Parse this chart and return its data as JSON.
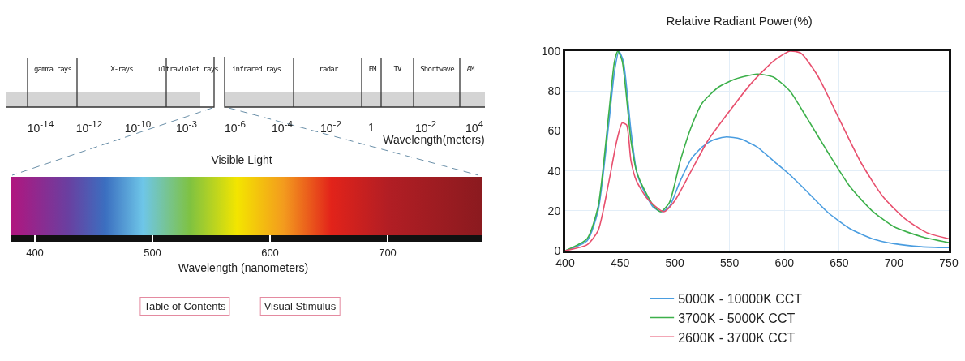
{
  "chart_data": [
    {
      "type": "other",
      "title": "Visible Light",
      "xlabel": "Wavelength (nanometers)",
      "annotations": [
        "gamma rays",
        "X-rays",
        "ultraviolet rays",
        "infrared rays",
        "radar",
        "FM",
        "TV",
        "Shortwave",
        "AM",
        "10$^{-14}$",
        "10$^{-12}$",
        "10$^{-10}$",
        "10$^{-3}$",
        "10$^{-6}$",
        "10$^{-4}$",
        "10$^{-2}$",
        "1",
        "10$^{-2}$",
        "10$^{4}$",
        "Wavelength(meters)",
        "Table of Contents",
        "Visual Stimulus",
        "400",
        "500",
        "600",
        "700"
      ]
    },
    {
      "type": "line",
      "title": "Relative Radiant Power(%)",
      "xlim": [
        400,
        750
      ],
      "xticks": [
        400,
        450,
        500,
        550,
        600,
        650,
        700,
        750
      ],
      "ylim": [
        0,
        100
      ],
      "yticks": [
        0,
        20,
        40,
        60,
        80,
        100
      ],
      "grid": true,
      "legend": "bottom",
      "series": [
        {
          "name": "5000K - 10000K CCT",
          "color": "#4a9de0",
          "x": [
            400,
            420,
            430,
            440,
            445,
            449,
            453,
            460,
            465,
            470,
            480,
            488,
            495,
            505,
            515,
            525,
            535,
            547,
            560,
            575,
            590,
            605,
            620,
            640,
            660,
            680,
            700,
            725,
            750
          ],
          "values": [
            0,
            5,
            20,
            65,
            90,
            100,
            95,
            60,
            40,
            32,
            22,
            19.5,
            22,
            35,
            46,
            52,
            55.5,
            57,
            56,
            52,
            45,
            38,
            30,
            19,
            11,
            6,
            3.5,
            2,
            1.5
          ]
        },
        {
          "name": "3700K - 5000K CCT",
          "color": "#3cb04a",
          "x": [
            400,
            420,
            430,
            440,
            445,
            448,
            452,
            460,
            465,
            470,
            480,
            487,
            495,
            505,
            515,
            525,
            540,
            555,
            575,
            590,
            605,
            620,
            640,
            660,
            680,
            700,
            725,
            750
          ],
          "values": [
            0,
            6,
            22,
            70,
            95,
            100,
            95,
            55,
            40,
            33,
            23,
            19.5,
            24,
            45,
            62,
            74,
            82,
            86,
            88.5,
            87,
            80,
            67,
            49,
            32,
            20,
            12,
            7,
            4
          ]
        },
        {
          "name": "2600K - 3700K CCT",
          "color": "#e8506e",
          "x": [
            400,
            420,
            430,
            440,
            447,
            452,
            456,
            460,
            465,
            475,
            490,
            500,
            515,
            530,
            550,
            570,
            590,
            605,
            615,
            630,
            650,
            670,
            690,
            710,
            730,
            750
          ],
          "values": [
            0,
            3,
            10,
            35,
            55,
            64,
            63,
            45,
            35,
            26,
            19.5,
            25,
            40,
            55,
            70,
            84,
            95,
            100,
            99,
            88,
            66,
            44,
            27,
            16,
            9,
            6
          ]
        }
      ]
    }
  ]
}
